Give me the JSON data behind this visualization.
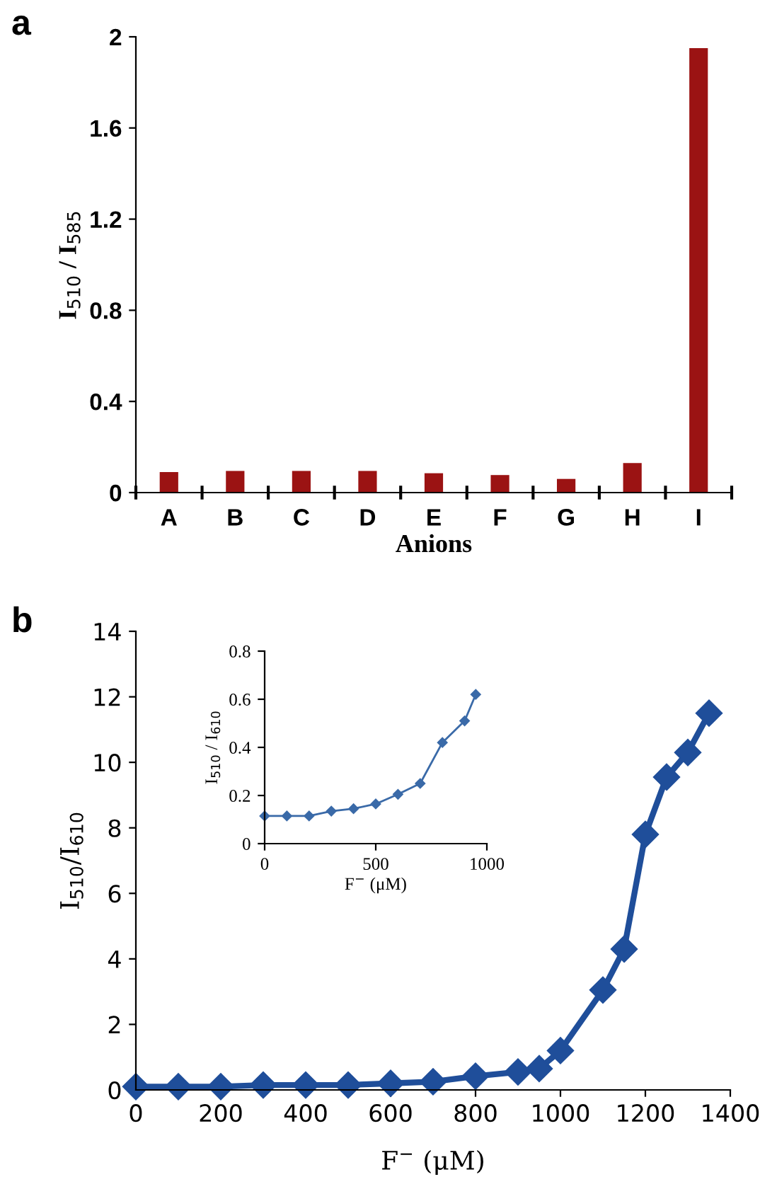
{
  "chart_data": [
    {
      "type": "bar",
      "annotations": [
        "a"
      ],
      "xlabel": "Anions",
      "ylabel": "I$_{510}$ / I$_{585}$",
      "categories": [
        "A",
        "B",
        "C",
        "D",
        "E",
        "F",
        "G",
        "H",
        "I"
      ],
      "values": [
        0.09,
        0.095,
        0.095,
        0.095,
        0.085,
        0.077,
        0.06,
        0.13,
        1.95
      ],
      "color": "#9b1313",
      "ylim": [
        0,
        2
      ],
      "yticks": [
        0,
        0.4,
        0.8,
        1.2,
        1.6,
        2
      ],
      "grid": false
    },
    {
      "type": "line",
      "annotations": [
        "b"
      ],
      "xlabel": "F$^{−}$ (μM)",
      "ylabel": "I$_{510}$/I$_{610}$",
      "marker": "diamond",
      "line_style": "solid",
      "x": [
        0,
        100,
        200,
        300,
        400,
        500,
        600,
        700,
        800,
        900,
        950,
        1000,
        1100,
        1150,
        1200,
        1250,
        1300,
        1350
      ],
      "series": [
        {
          "color": "#1f4e9a",
          "values": [
            0.1,
            0.1,
            0.1,
            0.15,
            0.15,
            0.15,
            0.2,
            0.25,
            0.42,
            0.55,
            0.65,
            1.2,
            3.05,
            4.3,
            7.8,
            9.55,
            10.3,
            11.5
          ]
        }
      ],
      "xlim": [
        0,
        1400
      ],
      "xticks": [
        0,
        200,
        400,
        600,
        800,
        1000,
        1200,
        1400
      ],
      "ylim": [
        0,
        14
      ],
      "yticks": [
        0,
        2,
        4,
        6,
        8,
        10,
        12,
        14
      ],
      "grid": false
    },
    {
      "type": "line",
      "xlabel": "F$^{−}$ (μM)",
      "ylabel": "I$_{510}$ / I$_{610}$",
      "marker": "diamond",
      "line_style": "solid",
      "x": [
        0,
        100,
        200,
        300,
        400,
        500,
        600,
        700,
        800,
        900,
        950
      ],
      "series": [
        {
          "color": "#3a6aa8",
          "values": [
            0.115,
            0.115,
            0.115,
            0.135,
            0.145,
            0.165,
            0.205,
            0.25,
            0.42,
            0.51,
            0.62
          ]
        }
      ],
      "xlim": [
        0,
        1000
      ],
      "xticks": [
        0,
        500,
        1000
      ],
      "ylim": [
        0,
        0.8
      ],
      "yticks": [
        0,
        0.2,
        0.4,
        0.6,
        0.8
      ],
      "grid": false
    }
  ]
}
